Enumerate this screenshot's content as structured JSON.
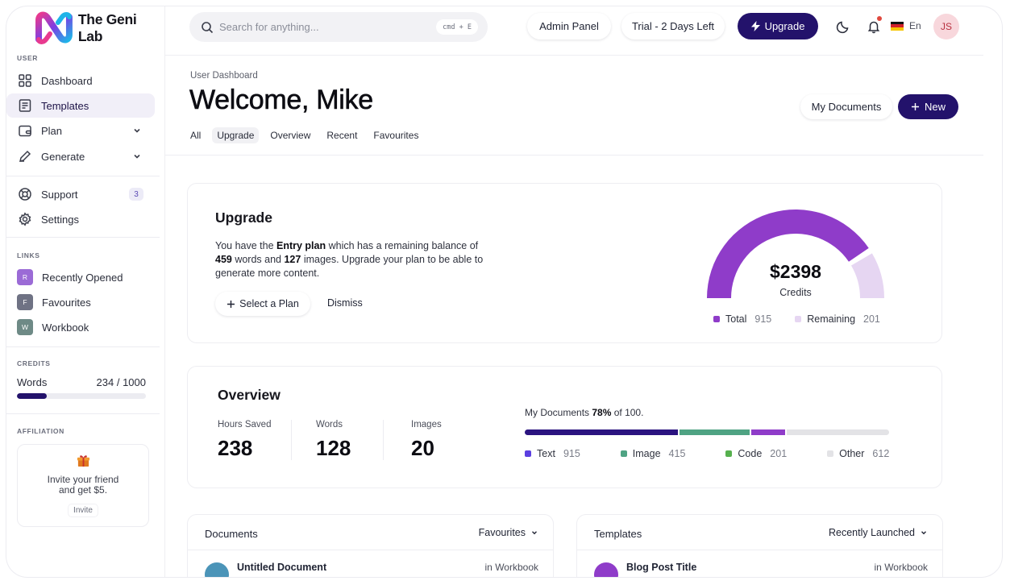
{
  "app": {
    "name": "The Geni Lab"
  },
  "sidebar": {
    "user_section": "USER",
    "items": [
      {
        "label": "Dashboard",
        "icon": "grid-icon"
      },
      {
        "label": "Templates",
        "icon": "template-icon",
        "active": true
      },
      {
        "label": "Plan",
        "icon": "wallet-icon",
        "expandable": true
      },
      {
        "label": "Generate",
        "icon": "pen-icon",
        "expandable": true
      },
      {
        "label": "Support",
        "icon": "lifebuoy-icon",
        "badge": "3"
      },
      {
        "label": "Settings",
        "icon": "gear-icon"
      }
    ],
    "links_section": "LINKS",
    "links": [
      {
        "initial": "R",
        "label": "Recently Opened",
        "color": "#9b6bd6"
      },
      {
        "initial": "F",
        "label": "Favourites",
        "color": "#6f7284"
      },
      {
        "initial": "W",
        "label": "Workbook",
        "color": "#6e8a86"
      }
    ],
    "credits_section": "CREDITS",
    "credits": {
      "label": "Words",
      "value": "234 / 1000",
      "fraction": 0.234
    },
    "affiliation_section": "AFFILIATION",
    "affiliation": {
      "text_line1": "Invite your friend",
      "text_line2": "and get $5.",
      "button": "Invite"
    }
  },
  "topbar": {
    "search_placeholder": "Search for anything...",
    "shortcut": "cmd + E",
    "admin_panel": "Admin Panel",
    "trial": "Trial - 2 Days Left",
    "upgrade": "Upgrade",
    "language": "En",
    "avatar_initials": "JS"
  },
  "header": {
    "breadcrumb": "User Dashboard",
    "title": "Welcome, Mike",
    "tabs": [
      "All",
      "Upgrade",
      "Overview",
      "Recent",
      "Favourites"
    ],
    "active_tab": "Upgrade",
    "my_documents": "My Documents",
    "new": "New"
  },
  "upgrade": {
    "title": "Upgrade",
    "text_1": "You have the ",
    "plan": "Entry plan",
    "text_2": " which has a remaining balance of",
    "words": "459",
    "text_3": " words and ",
    "images": "127",
    "text_4": " images. Upgrade your plan to be able to generate more content.",
    "select_plan": "Select a Plan",
    "dismiss": "Dismiss",
    "gauge": {
      "value": "$2398",
      "label": "Credits",
      "total_label": "Total",
      "total": 915,
      "remaining_label": "Remaining",
      "remaining": 201,
      "total_color": "#8f3cc9",
      "remaining_color": "#e6d6f2"
    }
  },
  "overview": {
    "title": "Overview",
    "stats": [
      {
        "label": "Hours Saved",
        "value": "238"
      },
      {
        "label": "Words",
        "value": "128"
      },
      {
        "label": "Images",
        "value": "20"
      }
    ],
    "docs_prefix": "My Documents ",
    "docs_percent": "78%",
    "docs_suffix": " of 100.",
    "segments": [
      {
        "label": "Text",
        "value": 915,
        "color": "#2b1480"
      },
      {
        "label": "Image",
        "value": 415,
        "color": "#4fa383"
      },
      {
        "label": "Code",
        "value": 201,
        "color": "#8f3cc9"
      },
      {
        "label": "Other",
        "value": 612,
        "color": "#e3e3e6"
      }
    ],
    "legend_colors": [
      "#5b3fe0",
      "#4fa383",
      "#56b04e",
      "#e3e3e6"
    ]
  },
  "documents": {
    "title": "Documents",
    "filter": "Favourites",
    "row_title": "Untitled Document",
    "row_meta": "in Workbook",
    "row_color": "#4b94b8"
  },
  "templates": {
    "title": "Templates",
    "filter": "Recently Launched",
    "row_title": "Blog Post Title",
    "row_meta": "in Workbook",
    "row_color": "#8f3cc9"
  }
}
